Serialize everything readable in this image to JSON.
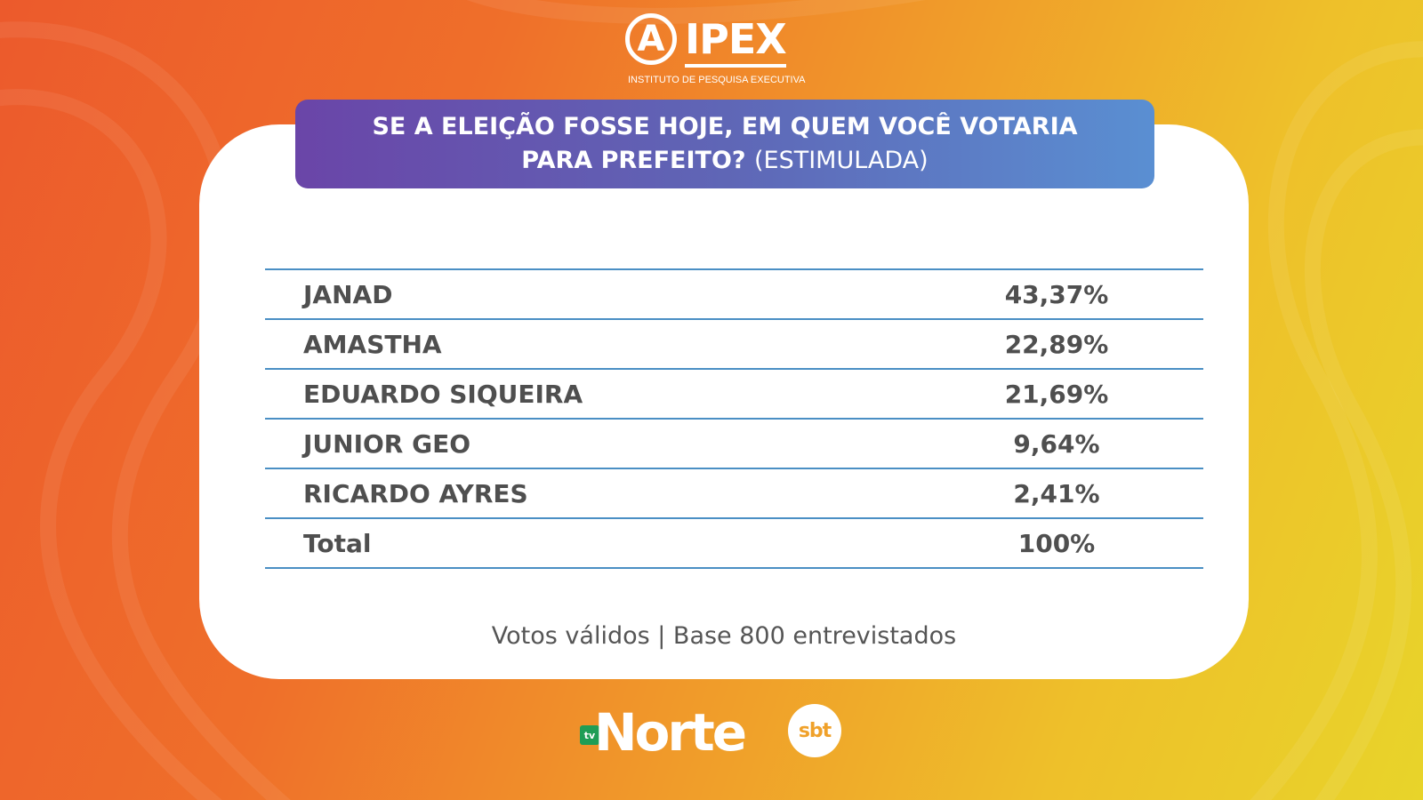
{
  "brand": {
    "ipex_mark": "A",
    "ipex_name": "IPEX",
    "ipex_tagline": "INSTITUTO DE PESQUISA EXECUTIVA",
    "tv_badge": "tv",
    "tv_name": "Norte",
    "sbt_name": "sbt"
  },
  "header": {
    "line1": "SE A ELEIÇÃO FOSSE HOJE, EM QUEM VOCÊ VOTARIA",
    "line2_bold": "PARA PREFEITO?",
    "line2_light": "(ESTIMULADA)"
  },
  "results": [
    {
      "name": "JANAD",
      "value": "43,37%"
    },
    {
      "name": "AMASTHA",
      "value": "22,89%"
    },
    {
      "name": "EDUARDO SIQUEIRA",
      "value": "21,69%"
    },
    {
      "name": "JUNIOR GEO",
      "value": "9,64%"
    },
    {
      "name": "RICARDO AYRES",
      "value": "2,41%"
    },
    {
      "name": "Total",
      "value": "100%"
    }
  ],
  "footnote": "Votos válidos | Base 800 entrevistados",
  "colors": {
    "header_gradient_start": "#6a45a8",
    "header_gradient_end": "#5a8fd2",
    "table_rule": "#4a8fc4",
    "text_dark": "#4f4f4f",
    "background_start": "#ec5a2c",
    "background_end": "#e8d42a"
  }
}
